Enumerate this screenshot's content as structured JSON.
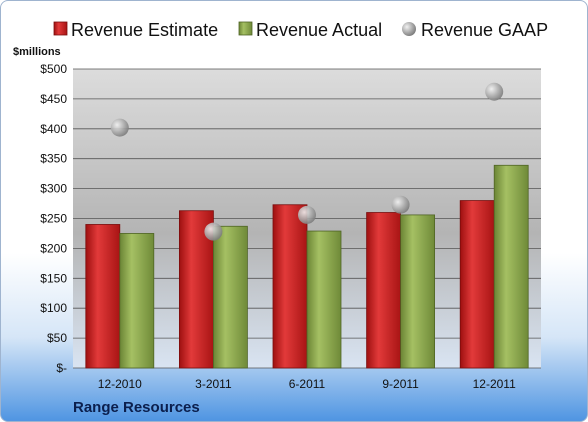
{
  "chart_data": {
    "type": "bar",
    "categories": [
      "12-2010",
      "3-2011",
      "6-2011",
      "9-2011",
      "12-2011"
    ],
    "series": [
      {
        "name": "Revenue Estimate",
        "kind": "bar",
        "color": "#cc1f1f",
        "values": [
          240,
          263,
          273,
          260,
          280
        ]
      },
      {
        "name": "Revenue Actual",
        "kind": "bar",
        "color": "#8aa64a",
        "values": [
          225,
          237,
          229,
          256,
          339
        ]
      },
      {
        "name": "Revenue GAAP",
        "kind": "marker",
        "color": "#a9a9a9",
        "values": [
          402,
          228,
          256,
          273,
          462
        ]
      }
    ],
    "ylabel": "$millions",
    "ylim": [
      0,
      500
    ],
    "yticks": [
      0,
      50,
      100,
      150,
      200,
      250,
      300,
      350,
      400,
      450,
      500
    ],
    "ytick_labels": [
      "$-",
      "$50",
      "$100",
      "$150",
      "$200",
      "$250",
      "$300",
      "$350",
      "$400",
      "$450",
      "$500"
    ],
    "grid": true,
    "legend": "top"
  },
  "footer": {
    "company": "Range Resources"
  }
}
